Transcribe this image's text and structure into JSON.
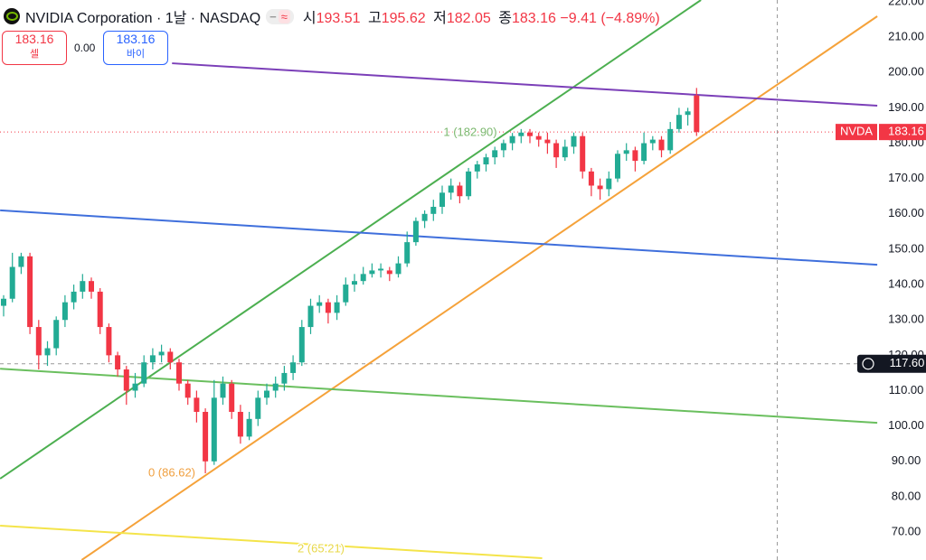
{
  "header": {
    "symbol": "NVIDIA Corporation · 1날 · NASDAQ",
    "open_label": "시",
    "high_label": "고",
    "low_label": "저",
    "close_label": "종",
    "change": "−9.41",
    "change_pct": "(−4.89%)",
    "badge": "≈",
    "sell_label": "셀",
    "spread": "0.00",
    "buy_label": "바이",
    "ticker": "NVDA"
  },
  "chart_data": {
    "type": "candlestick",
    "up_color": "#22ab94",
    "down_color": "#f23645",
    "ylim": [
      62.1,
      220.5
    ],
    "yticks": [
      {
        "value": 70,
        "label": "70.00"
      },
      {
        "value": 80,
        "label": "80.00"
      },
      {
        "value": 90,
        "label": "90.00"
      },
      {
        "value": 100,
        "label": "100.00"
      },
      {
        "value": 110,
        "label": "110.00"
      },
      {
        "value": 120,
        "label": "120.00"
      },
      {
        "value": 130,
        "label": "130.00"
      },
      {
        "value": 140,
        "label": "140.00"
      },
      {
        "value": 150,
        "label": "150.00"
      },
      {
        "value": 160,
        "label": "160.00"
      },
      {
        "value": 170,
        "label": "170.00"
      },
      {
        "value": 180,
        "label": "180.00"
      },
      {
        "value": 190,
        "label": "190.00"
      },
      {
        "value": 200,
        "label": "200.00"
      },
      {
        "value": 210,
        "label": "210.00"
      },
      {
        "value": 220,
        "label": "220.00"
      }
    ],
    "ohlc": [
      [
        134,
        137,
        131,
        136
      ],
      [
        136,
        149,
        135,
        145
      ],
      [
        145,
        149,
        143,
        148
      ],
      [
        148,
        149,
        126,
        128
      ],
      [
        128,
        130,
        116,
        120
      ],
      [
        120,
        124,
        117,
        122
      ],
      [
        122,
        131,
        120,
        130
      ],
      [
        130,
        137,
        128,
        135
      ],
      [
        135,
        140,
        133,
        138
      ],
      [
        138,
        143,
        136,
        141
      ],
      [
        141,
        142,
        136,
        138
      ],
      [
        138,
        139,
        126,
        128
      ],
      [
        128,
        129,
        118,
        120
      ],
      [
        120,
        121,
        114,
        116
      ],
      [
        116,
        117,
        106,
        110
      ],
      [
        110,
        115,
        108,
        112
      ],
      [
        112,
        120,
        111,
        118
      ],
      [
        118,
        122,
        116,
        120
      ],
      [
        120,
        123,
        118,
        121
      ],
      [
        121,
        122,
        116,
        118
      ],
      [
        118,
        119,
        110,
        112
      ],
      [
        112,
        113,
        106,
        108
      ],
      [
        108,
        110,
        101,
        104
      ],
      [
        104,
        105,
        86.62,
        90
      ],
      [
        90,
        113,
        89,
        108
      ],
      [
        108,
        114,
        106,
        112
      ],
      [
        112,
        113,
        102,
        104
      ],
      [
        104,
        106,
        95,
        97
      ],
      [
        97,
        104,
        96,
        102
      ],
      [
        102,
        110,
        100,
        108
      ],
      [
        108,
        112,
        106,
        110
      ],
      [
        110,
        114,
        108,
        112
      ],
      [
        112,
        117,
        110,
        115
      ],
      [
        115,
        120,
        113,
        118
      ],
      [
        118,
        130,
        117,
        128
      ],
      [
        128,
        136,
        126,
        134
      ],
      [
        134,
        137,
        132,
        135
      ],
      [
        135,
        136,
        129,
        132
      ],
      [
        132,
        137,
        130,
        135
      ],
      [
        135,
        142,
        134,
        140
      ],
      [
        140,
        143,
        138,
        141
      ],
      [
        141,
        145,
        140,
        143
      ],
      [
        143,
        146,
        142,
        144
      ],
      [
        144,
        146,
        142,
        144.5
      ],
      [
        144,
        145,
        141,
        143
      ],
      [
        143,
        148,
        142,
        146
      ],
      [
        146,
        155,
        145,
        152
      ],
      [
        152,
        159,
        151,
        158
      ],
      [
        158,
        161,
        156,
        160
      ],
      [
        160,
        164,
        158,
        162
      ],
      [
        162,
        168,
        160,
        166
      ],
      [
        166,
        170,
        164,
        168
      ],
      [
        168,
        169,
        163,
        165
      ],
      [
        165,
        173,
        164,
        172
      ],
      [
        172,
        175,
        170,
        174
      ],
      [
        174,
        177,
        172,
        176
      ],
      [
        176,
        179,
        174,
        178
      ],
      [
        178,
        181,
        176,
        180
      ],
      [
        180,
        182.9,
        178,
        182
      ],
      [
        182,
        184,
        180,
        183
      ],
      [
        183,
        184,
        180,
        182
      ],
      [
        182,
        183,
        179,
        181
      ],
      [
        181,
        183,
        177,
        180
      ],
      [
        180,
        181,
        173,
        176
      ],
      [
        176,
        181,
        175,
        179
      ],
      [
        179,
        183,
        177,
        182
      ],
      [
        182,
        183,
        170,
        172
      ],
      [
        172,
        173,
        165,
        168
      ],
      [
        168,
        170,
        164,
        167
      ],
      [
        167,
        172,
        165,
        170
      ],
      [
        170,
        178,
        169,
        177
      ],
      [
        177,
        180,
        175,
        178
      ],
      [
        178,
        179,
        172,
        175
      ],
      [
        175,
        183,
        174,
        180
      ],
      [
        180,
        182,
        178,
        181
      ],
      [
        181,
        182,
        176,
        178
      ],
      [
        178,
        186,
        177,
        184
      ],
      [
        184,
        190,
        183,
        188
      ],
      [
        188,
        190,
        185,
        189
      ],
      [
        193.51,
        195.62,
        182.05,
        183.16
      ]
    ],
    "drawings": [
      {
        "color": "#4caf50",
        "x": [
          -0.4,
          79.5
        ],
        "y": [
          85.1,
          220.5
        ]
      },
      {
        "color": "#f5a23a",
        "x": [
          8.9,
          99.6
        ],
        "y": [
          62.1,
          215.9
        ]
      },
      {
        "color": "#7b3fb8",
        "x": [
          19.2,
          99.6
        ],
        "y": [
          202.6,
          190.6
        ]
      },
      {
        "color": "#3f6fdc",
        "x": [
          -0.4,
          99.6
        ],
        "y": [
          161.0,
          145.6
        ]
      },
      {
        "color": "#6abf5e",
        "x": [
          -0.4,
          99.6
        ],
        "y": [
          116.2,
          100.9
        ]
      },
      {
        "color": "#f4e44a",
        "x": [
          -0.4,
          61.4
        ],
        "y": [
          71.8,
          62.6
        ]
      }
    ],
    "annotations": [
      {
        "text": "1 (182.90)",
        "value": 182.9,
        "color": "#7cb86f"
      },
      {
        "text": "0 (86.62)",
        "value": 86.62,
        "color": "#f0a040"
      },
      {
        "text": "2 (65.21)",
        "value": 65.21,
        "color": "#e8d84a"
      }
    ],
    "crosshair": {
      "x": 88.2,
      "value": 117.6,
      "label": "117.60"
    }
  }
}
